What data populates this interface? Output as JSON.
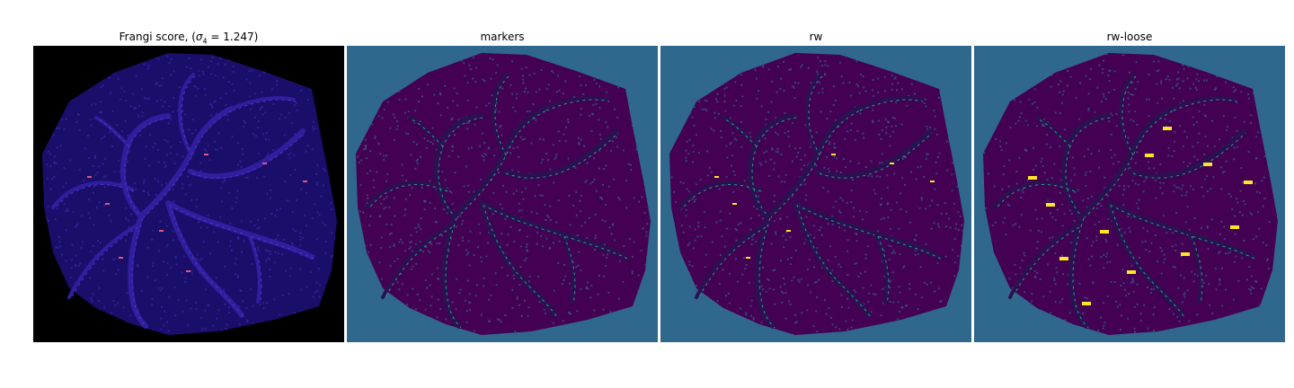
{
  "panels": [
    {
      "title_prefix": "Frangi score, (",
      "title_sigma": "σ",
      "title_sub": "4",
      "title_suffix": " = 1.247)",
      "colormap": "inferno",
      "background": "#000000",
      "tissue": "#1a0e6b",
      "vessel": "#2f1e9e",
      "highlight": "#e0557a"
    },
    {
      "title": "markers",
      "colormap": "viridis",
      "background": "#30678d",
      "tissue": "#440154",
      "vessel": "#3b1f6e",
      "highlight": "#25a38c"
    },
    {
      "title": "rw",
      "colormap": "viridis",
      "background": "#30678d",
      "tissue": "#440154",
      "vessel": "#3b1f6e",
      "highlight": "#fde725"
    },
    {
      "title": "rw-loose",
      "colormap": "viridis",
      "background": "#30678d",
      "tissue": "#440154",
      "vessel": "#3b1f6e",
      "highlight": "#fde725"
    }
  ]
}
